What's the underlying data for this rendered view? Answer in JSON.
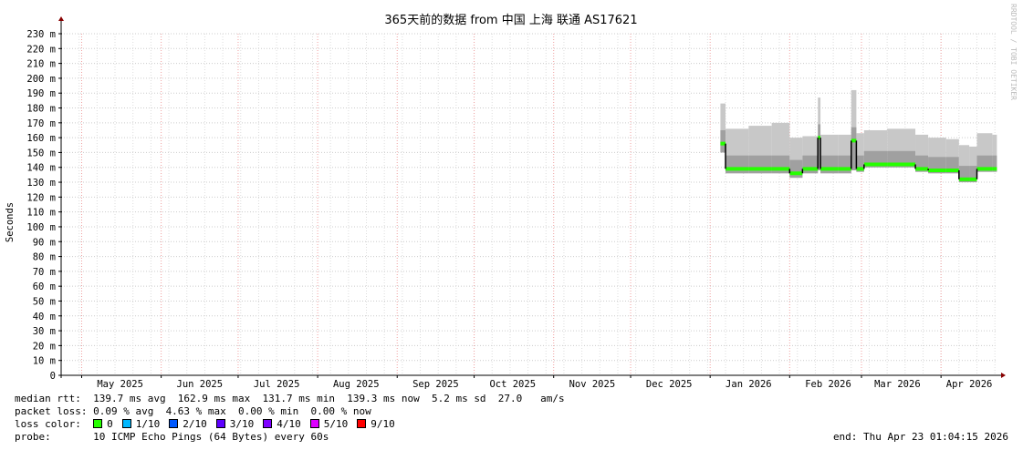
{
  "chart_data": {
    "type": "line",
    "title": "365天前的数据 from  中国 上海 联通 AS17621",
    "ylabel": "Seconds",
    "xlabel": "",
    "ylim": [
      0,
      230
    ],
    "y_ticks": [
      "0",
      "10 m",
      "20 m",
      "30 m",
      "40 m",
      "50 m",
      "60 m",
      "70 m",
      "80 m",
      "90 m",
      "100 m",
      "110 m",
      "120 m",
      "130 m",
      "140 m",
      "150 m",
      "160 m",
      "170 m",
      "180 m",
      "190 m",
      "200 m",
      "210 m",
      "220 m",
      "230 m"
    ],
    "xlim": [
      "2025-04-23",
      "2026-04-23"
    ],
    "x_ticks": [
      {
        "label": "May 2025",
        "date": "2025-05-16"
      },
      {
        "label": "Jun 2025",
        "date": "2025-06-16"
      },
      {
        "label": "Jul 2025",
        "date": "2025-07-16"
      },
      {
        "label": "Aug 2025",
        "date": "2025-08-16"
      },
      {
        "label": "Sep 2025",
        "date": "2025-09-16"
      },
      {
        "label": "Oct 2025",
        "date": "2025-10-16"
      },
      {
        "label": "Nov 2025",
        "date": "2025-11-16"
      },
      {
        "label": "Dec 2025",
        "date": "2025-12-16"
      },
      {
        "label": "Jan 2026",
        "date": "2026-01-16"
      },
      {
        "label": "Feb 2026",
        "date": "2026-02-16"
      },
      {
        "label": "Mar 2026",
        "date": "2026-03-15"
      },
      {
        "label": "Apr 2026",
        "date": "2026-04-12"
      }
    ],
    "grid": true,
    "units": "ms",
    "series": [
      {
        "name": "median rtt",
        "points": [
          {
            "date": "2026-01-05",
            "median": 156,
            "smoke_low": 150,
            "smoke_high": 183
          },
          {
            "date": "2026-01-07",
            "median": 139,
            "smoke_low": 136,
            "smoke_high": 166
          },
          {
            "date": "2026-01-16",
            "median": 139,
            "smoke_low": 136,
            "smoke_high": 168
          },
          {
            "date": "2026-01-25",
            "median": 139,
            "smoke_low": 136,
            "smoke_high": 170
          },
          {
            "date": "2026-02-01",
            "median": 136,
            "smoke_low": 133,
            "smoke_high": 160
          },
          {
            "date": "2026-02-06",
            "median": 139,
            "smoke_low": 136,
            "smoke_high": 161
          },
          {
            "date": "2026-02-12",
            "median": 160,
            "smoke_low": 138,
            "smoke_high": 187
          },
          {
            "date": "2026-02-13",
            "median": 139,
            "smoke_low": 136,
            "smoke_high": 162
          },
          {
            "date": "2026-02-20",
            "median": 139,
            "smoke_low": 136,
            "smoke_high": 162
          },
          {
            "date": "2026-02-25",
            "median": 158,
            "smoke_low": 138,
            "smoke_high": 192
          },
          {
            "date": "2026-02-27",
            "median": 139,
            "smoke_low": 137,
            "smoke_high": 163
          },
          {
            "date": "2026-03-02",
            "median": 142,
            "smoke_low": 140,
            "smoke_high": 165
          },
          {
            "date": "2026-03-11",
            "median": 142,
            "smoke_low": 140,
            "smoke_high": 166
          },
          {
            "date": "2026-03-22",
            "median": 139,
            "smoke_low": 137,
            "smoke_high": 162
          },
          {
            "date": "2026-03-27",
            "median": 138,
            "smoke_low": 136,
            "smoke_high": 160
          },
          {
            "date": "2026-04-03",
            "median": 138,
            "smoke_low": 136,
            "smoke_high": 159
          },
          {
            "date": "2026-04-08",
            "median": 132,
            "smoke_low": 130,
            "smoke_high": 155
          },
          {
            "date": "2026-04-12",
            "median": 132,
            "smoke_low": 130,
            "smoke_high": 154
          },
          {
            "date": "2026-04-15",
            "median": 139,
            "smoke_low": 137,
            "smoke_high": 163
          },
          {
            "date": "2026-04-21",
            "median": 139,
            "smoke_low": 137,
            "smoke_high": 162
          }
        ]
      }
    ],
    "watermark": "RRDTOOL / TOBI OETIKER"
  },
  "legend": {
    "median_rtt": "median rtt:  139.7 ms avg  162.9 ms max  131.7 ms min  139.3 ms now  5.2 ms sd  27.0   am/s",
    "packet_loss": "packet loss: 0.09 % avg  4.63 % max  0.00 % min  0.00 % now",
    "loss_color_label": "loss color:  ",
    "loss_colors": [
      {
        "label": "0",
        "color": "#26ff00"
      },
      {
        "label": "1/10",
        "color": "#00b8ff"
      },
      {
        "label": "2/10",
        "color": "#0059ff"
      },
      {
        "label": "3/10",
        "color": "#5e00ff"
      },
      {
        "label": "4/10",
        "color": "#7e00ff"
      },
      {
        "label": "5/10",
        "color": "#dd00ff"
      },
      {
        "label": "9/10",
        "color": "#ff0000"
      }
    ],
    "probe": "probe:       10 ICMP Echo Pings (64 Bytes) every 60s",
    "end": "end: Thu Apr 23 01:04:15 2026"
  }
}
